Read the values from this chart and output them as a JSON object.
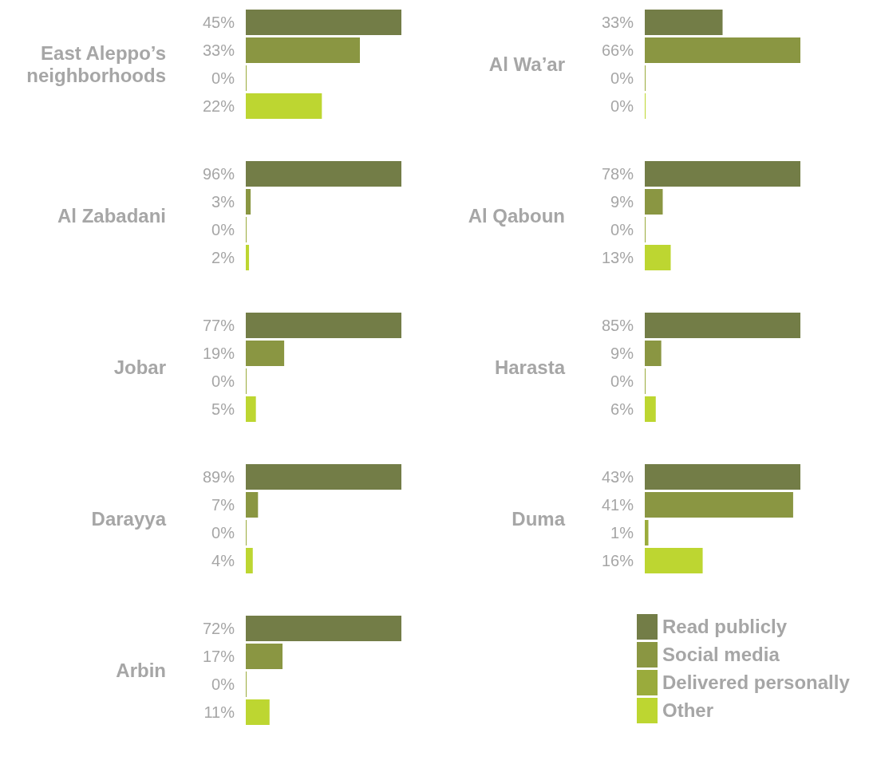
{
  "chart_data": [
    {
      "type": "bar",
      "orientation": "horizontal",
      "categories": [
        "East Aleppo’s neighborhoods"
      ],
      "legend": false,
      "series": [
        {
          "color": "#737d47",
          "values": [
            45
          ],
          "value_labels": [
            "45%"
          ]
        },
        {
          "color": "#8a9642",
          "values": [
            33
          ],
          "value_labels": [
            "33%"
          ]
        },
        {
          "color": "#9aab3c",
          "values": [
            0
          ],
          "value_labels": [
            "0%"
          ]
        },
        {
          "color": "#bdd631",
          "values": [
            22
          ],
          "value_labels": [
            "22%"
          ]
        }
      ]
    },
    {
      "type": "bar",
      "orientation": "horizontal",
      "categories": [
        "Al Wa’ar"
      ],
      "legend": false,
      "series": [
        {
          "color": "#737d47",
          "values": [
            33
          ],
          "value_labels": [
            "33%"
          ]
        },
        {
          "color": "#8a9642",
          "values": [
            66
          ],
          "value_labels": [
            "66%"
          ]
        },
        {
          "color": "#9aab3c",
          "values": [
            0
          ],
          "value_labels": [
            "0%"
          ]
        },
        {
          "color": "#bdd631",
          "values": [
            0
          ],
          "value_labels": [
            "0%"
          ]
        }
      ]
    },
    {
      "type": "bar",
      "orientation": "horizontal",
      "categories": [
        "Al Zabadani"
      ],
      "legend": false,
      "series": [
        {
          "color": "#737d47",
          "values": [
            96
          ],
          "value_labels": [
            "96%"
          ]
        },
        {
          "color": "#8a9642",
          "values": [
            3
          ],
          "value_labels": [
            "3%"
          ]
        },
        {
          "color": "#9aab3c",
          "values": [
            0
          ],
          "value_labels": [
            "0%"
          ]
        },
        {
          "color": "#bdd631",
          "values": [
            2
          ],
          "value_labels": [
            "2%"
          ]
        }
      ]
    },
    {
      "type": "bar",
      "orientation": "horizontal",
      "categories": [
        "Al Qaboun"
      ],
      "legend": false,
      "series": [
        {
          "color": "#737d47",
          "values": [
            78
          ],
          "value_labels": [
            "78%"
          ]
        },
        {
          "color": "#8a9642",
          "values": [
            9
          ],
          "value_labels": [
            "9%"
          ]
        },
        {
          "color": "#9aab3c",
          "values": [
            0
          ],
          "value_labels": [
            "0%"
          ]
        },
        {
          "color": "#bdd631",
          "values": [
            13
          ],
          "value_labels": [
            "13%"
          ]
        }
      ]
    },
    {
      "type": "bar",
      "orientation": "horizontal",
      "categories": [
        "Jobar"
      ],
      "legend": false,
      "series": [
        {
          "color": "#737d47",
          "values": [
            77
          ],
          "value_labels": [
            "77%"
          ]
        },
        {
          "color": "#8a9642",
          "values": [
            19
          ],
          "value_labels": [
            "19%"
          ]
        },
        {
          "color": "#9aab3c",
          "values": [
            0
          ],
          "value_labels": [
            "0%"
          ]
        },
        {
          "color": "#bdd631",
          "values": [
            5
          ],
          "value_labels": [
            "5%"
          ]
        }
      ]
    },
    {
      "type": "bar",
      "orientation": "horizontal",
      "categories": [
        "Harasta"
      ],
      "legend": false,
      "series": [
        {
          "color": "#737d47",
          "values": [
            85
          ],
          "value_labels": [
            "85%"
          ]
        },
        {
          "color": "#8a9642",
          "values": [
            9
          ],
          "value_labels": [
            "9%"
          ]
        },
        {
          "color": "#9aab3c",
          "values": [
            0
          ],
          "value_labels": [
            "0%"
          ]
        },
        {
          "color": "#bdd631",
          "values": [
            6
          ],
          "value_labels": [
            "6%"
          ]
        }
      ]
    },
    {
      "type": "bar",
      "orientation": "horizontal",
      "categories": [
        "Darayya"
      ],
      "legend": false,
      "series": [
        {
          "color": "#737d47",
          "values": [
            89
          ],
          "value_labels": [
            "89%"
          ]
        },
        {
          "color": "#8a9642",
          "values": [
            7
          ],
          "value_labels": [
            "7%"
          ]
        },
        {
          "color": "#9aab3c",
          "values": [
            0
          ],
          "value_labels": [
            "0%"
          ]
        },
        {
          "color": "#bdd631",
          "values": [
            4
          ],
          "value_labels": [
            "4%"
          ]
        }
      ]
    },
    {
      "type": "bar",
      "orientation": "horizontal",
      "categories": [
        "Duma"
      ],
      "legend": false,
      "series": [
        {
          "color": "#737d47",
          "values": [
            43
          ],
          "value_labels": [
            "43%"
          ]
        },
        {
          "color": "#8a9642",
          "values": [
            41
          ],
          "value_labels": [
            "41%"
          ]
        },
        {
          "color": "#9aab3c",
          "values": [
            1
          ],
          "value_labels": [
            "1%"
          ]
        },
        {
          "color": "#bdd631",
          "values": [
            16
          ],
          "value_labels": [
            "16%"
          ]
        }
      ]
    },
    {
      "type": "bar",
      "orientation": "horizontal",
      "categories": [
        "Arbin"
      ],
      "legend": "right",
      "series": [
        {
          "name": "Read publicly",
          "color": "#737d47",
          "values": [
            72
          ],
          "value_labels": [
            "72%"
          ]
        },
        {
          "name": "Social media",
          "color": "#8a9642",
          "values": [
            17
          ],
          "value_labels": [
            "17%"
          ]
        },
        {
          "name": "Delivered personally",
          "color": "#9aab3c",
          "values": [
            0
          ],
          "value_labels": [
            "0%"
          ]
        },
        {
          "name": "Other",
          "color": "#bdd631",
          "values": [
            11
          ],
          "value_labels": [
            "11%"
          ]
        }
      ]
    }
  ]
}
